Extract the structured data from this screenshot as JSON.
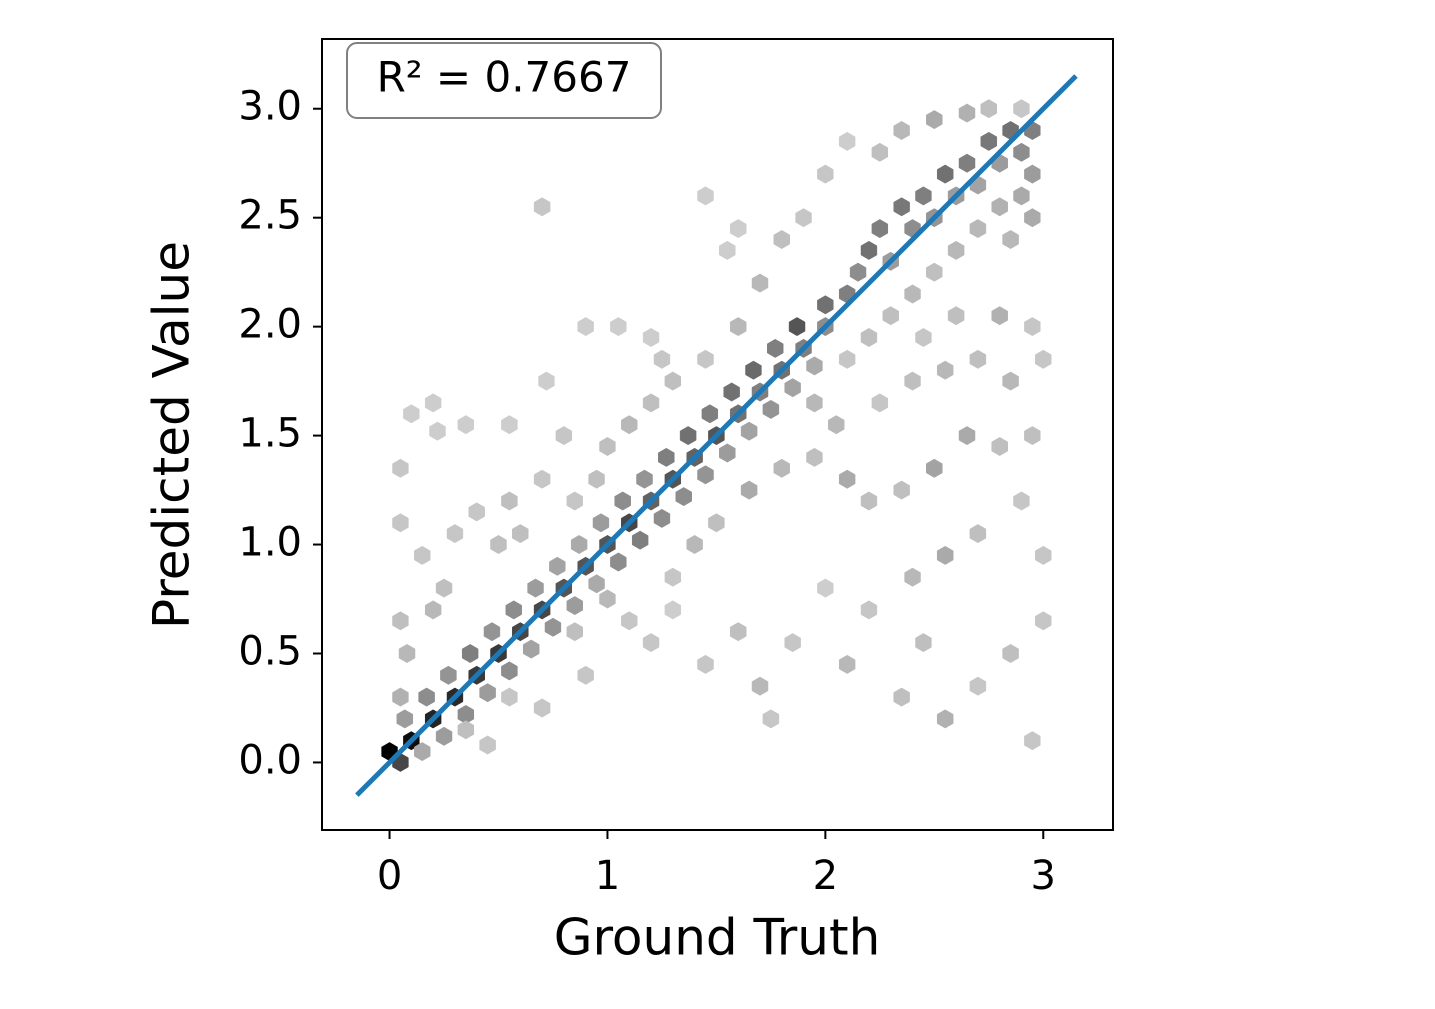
{
  "chart_data": {
    "type": "hexbin",
    "xlabel": "Ground Truth",
    "ylabel": "Predicted Value",
    "annotation": "R² = 0.7667",
    "xlim": [
      -0.31,
      3.32
    ],
    "ylim": [
      -0.31,
      3.32
    ],
    "xticks": [
      0,
      1,
      2,
      3
    ],
    "yticks": [
      {
        "value": 0,
        "label": "0.0"
      },
      {
        "value": 0.5,
        "label": "0.5"
      },
      {
        "value": 1,
        "label": "1.0"
      },
      {
        "value": 1.5,
        "label": "1.5"
      },
      {
        "value": 2,
        "label": "2.0"
      },
      {
        "value": 2.5,
        "label": "2.5"
      },
      {
        "value": 3,
        "label": "3.0"
      }
    ],
    "cmap": "Greys",
    "hexbins": {
      "x": [
        0.0,
        0.05,
        0.1,
        0.07,
        0.15,
        0.2,
        0.17,
        0.25,
        0.3,
        0.27,
        0.35,
        0.4,
        0.37,
        0.45,
        0.5,
        0.47,
        0.55,
        0.6,
        0.57,
        0.65,
        0.7,
        0.67,
        0.75,
        0.8,
        0.77,
        0.85,
        0.9,
        0.87,
        0.95,
        1.0,
        0.97,
        1.05,
        1.1,
        1.07,
        1.15,
        1.2,
        1.17,
        1.25,
        1.3,
        1.27,
        1.35,
        1.4,
        1.37,
        1.45,
        1.5,
        1.47,
        1.55,
        1.6,
        1.57,
        1.65,
        1.7,
        1.67,
        1.75,
        1.8,
        1.77,
        1.85,
        1.9,
        1.87,
        1.95,
        2.0,
        2.0,
        2.1,
        2.15,
        2.2,
        2.25,
        2.3,
        2.35,
        2.4,
        2.45,
        2.5,
        2.55,
        2.6,
        2.65,
        2.7,
        2.75,
        2.8,
        2.85,
        2.9,
        2.95,
        2.95,
        2.9,
        2.8,
        2.7,
        2.6,
        2.95,
        2.85,
        2.5,
        2.4,
        2.3,
        2.2,
        2.1,
        0.7,
        0.9,
        1.05,
        1.2,
        0.72,
        0.1,
        0.2,
        0.22,
        0.55,
        0.8,
        0.7,
        0.55,
        0.4,
        0.5,
        0.6,
        0.3,
        0.15,
        0.05,
        0.05,
        0.25,
        0.2,
        0.05,
        0.08,
        0.05,
        1.2,
        1.3,
        1.1,
        1.0,
        1.45,
        1.6,
        1.7,
        1.8,
        1.9,
        2.0,
        2.1,
        2.25,
        2.35,
        2.5,
        2.65,
        2.75,
        2.9,
        1.55,
        1.6,
        1.45,
        0.35,
        0.85,
        0.95,
        1.25,
        0.55,
        0.7,
        0.85,
        1.0,
        1.1,
        1.2,
        1.3,
        1.45,
        1.6,
        1.7,
        1.85,
        2.0,
        2.1,
        2.2,
        2.35,
        2.45,
        2.55,
        2.7,
        2.85,
        3.0,
        2.95,
        1.75,
        1.4,
        1.5,
        1.65,
        1.8,
        1.95,
        2.1,
        2.2,
        2.35,
        2.5,
        2.65,
        2.8,
        2.95,
        2.55,
        2.4,
        2.7,
        2.9,
        3.0,
        2.25,
        2.4,
        2.55,
        2.7,
        2.85,
        3.0,
        2.05,
        1.95,
        2.6,
        2.8,
        2.95,
        2.45,
        1.3,
        0.9,
        0.35,
        0.45
      ],
      "values": [
        0.05,
        0.0,
        0.1,
        0.2,
        0.05,
        0.2,
        0.3,
        0.12,
        0.3,
        0.4,
        0.22,
        0.4,
        0.5,
        0.32,
        0.5,
        0.6,
        0.42,
        0.6,
        0.7,
        0.52,
        0.7,
        0.8,
        0.62,
        0.8,
        0.9,
        0.72,
        0.9,
        1.0,
        0.82,
        1.0,
        1.1,
        0.92,
        1.1,
        1.2,
        1.02,
        1.2,
        1.3,
        1.12,
        1.3,
        1.4,
        1.22,
        1.4,
        1.5,
        1.32,
        1.5,
        1.6,
        1.42,
        1.6,
        1.7,
        1.52,
        1.7,
        1.8,
        1.62,
        1.8,
        1.9,
        1.72,
        1.9,
        2.0,
        1.82,
        2.0,
        2.1,
        2.15,
        2.25,
        2.35,
        2.45,
        2.3,
        2.55,
        2.45,
        2.6,
        2.5,
        2.7,
        2.6,
        2.75,
        2.65,
        2.85,
        2.75,
        2.9,
        2.8,
        2.9,
        2.7,
        2.6,
        2.55,
        2.45,
        2.35,
        2.5,
        2.4,
        2.25,
        2.15,
        2.05,
        1.95,
        1.85,
        2.55,
        2.0,
        2.0,
        1.95,
        1.75,
        1.6,
        1.65,
        1.52,
        1.55,
        1.5,
        1.3,
        1.2,
        1.15,
        1.0,
        1.05,
        1.05,
        0.95,
        1.1,
        1.35,
        0.8,
        0.7,
        0.65,
        0.5,
        0.3,
        1.65,
        1.75,
        1.55,
        1.45,
        1.85,
        2.0,
        2.2,
        2.4,
        2.5,
        2.7,
        2.85,
        2.8,
        2.9,
        2.95,
        2.98,
        3.0,
        3.0,
        2.35,
        2.45,
        2.6,
        1.55,
        1.2,
        1.3,
        1.85,
        0.3,
        0.25,
        0.6,
        0.75,
        0.65,
        0.55,
        0.7,
        0.45,
        0.6,
        0.35,
        0.55,
        0.8,
        0.45,
        0.7,
        0.3,
        0.55,
        0.2,
        0.35,
        0.5,
        0.65,
        0.1,
        0.2,
        1.0,
        1.1,
        1.25,
        1.35,
        1.4,
        1.3,
        1.2,
        1.25,
        1.35,
        1.5,
        1.45,
        1.5,
        0.95,
        0.85,
        1.05,
        1.2,
        0.95,
        1.65,
        1.75,
        1.8,
        1.85,
        1.75,
        1.85,
        1.55,
        1.65,
        2.05,
        2.05,
        2.0,
        1.95,
        0.85,
        0.4,
        0.15,
        0.08
      ],
      "counts": [
        30,
        20,
        28,
        8,
        6,
        25,
        10,
        8,
        24,
        9,
        10,
        22,
        12,
        8,
        22,
        9,
        10,
        20,
        10,
        7,
        20,
        8,
        9,
        18,
        7,
        8,
        18,
        6,
        6,
        18,
        8,
        10,
        20,
        10,
        12,
        16,
        9,
        10,
        18,
        12,
        10,
        16,
        14,
        9,
        18,
        12,
        8,
        14,
        14,
        7,
        12,
        15,
        9,
        14,
        12,
        7,
        12,
        18,
        6,
        10,
        14,
        12,
        10,
        14,
        12,
        8,
        13,
        10,
        12,
        9,
        14,
        8,
        12,
        7,
        13,
        8,
        14,
        10,
        12,
        8,
        6,
        5,
        4,
        4,
        6,
        4,
        3,
        4,
        3,
        3,
        2,
        2,
        1,
        1,
        1,
        1,
        1,
        1,
        1,
        1,
        2,
        2,
        3,
        2,
        3,
        3,
        2,
        2,
        2,
        2,
        3,
        4,
        3,
        4,
        5,
        3,
        3,
        4,
        3,
        2,
        4,
        4,
        3,
        2,
        2,
        1,
        3,
        4,
        6,
        5,
        3,
        2,
        1,
        1,
        1,
        1,
        2,
        3,
        2,
        2,
        2,
        3,
        4,
        2,
        2,
        1,
        2,
        3,
        4,
        2,
        1,
        4,
        2,
        3,
        3,
        5,
        2,
        3,
        2,
        2,
        2,
        4,
        3,
        6,
        4,
        3,
        6,
        3,
        3,
        7,
        6,
        3,
        3,
        6,
        4,
        3,
        2,
        2,
        2,
        3,
        4,
        3,
        4,
        2,
        4,
        4,
        3,
        5,
        2,
        2,
        2,
        2,
        3,
        2
      ]
    },
    "fit_line": {
      "x": [
        -0.15,
        3.15
      ],
      "values": [
        -0.15,
        3.15
      ],
      "color": "#1f77b4"
    }
  }
}
